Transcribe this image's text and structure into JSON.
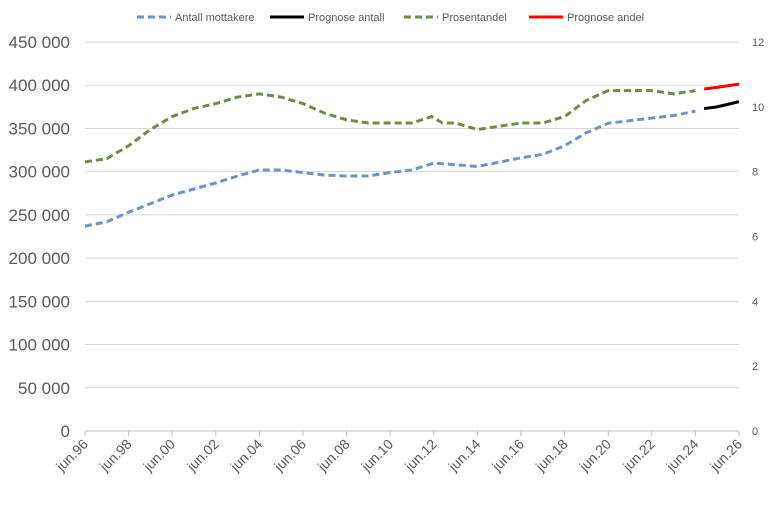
{
  "chart_data": {
    "type": "line",
    "title": "",
    "legend_position": "top",
    "grid": true,
    "x_ticks": [
      "jun.96",
      "jun.98",
      "jun.00",
      "jun.02",
      "jun.04",
      "jun.06",
      "jun.08",
      "jun.10",
      "jun.12",
      "jun.14",
      "jun.16",
      "jun.18",
      "jun.20",
      "jun.22",
      "jun.24",
      "jun.26"
    ],
    "xlim": [
      1996,
      2026
    ],
    "y_left": {
      "lim": [
        0,
        450000
      ],
      "ticks": [
        "0",
        "50 000",
        "100 000",
        "150 000",
        "200 000",
        "250 000",
        "300 000",
        "350 000",
        "400 000",
        "450 000"
      ]
    },
    "y_right": {
      "lim": [
        0,
        12
      ],
      "ticks": [
        "0",
        "2",
        "4",
        "6",
        "8",
        "10",
        "12"
      ]
    },
    "series": [
      {
        "name": "Antall mottakere",
        "axis": "left",
        "color": "#6f92cf",
        "dash": true,
        "x": [
          1996,
          1997,
          1998,
          1999,
          2000,
          2001,
          2002,
          2003,
          2004,
          2005,
          2006,
          2007,
          2008,
          2009,
          2010,
          2011,
          2012,
          2013,
          2014,
          2015,
          2016,
          2017,
          2018,
          2019,
          2020,
          2021,
          2022,
          2023,
          2024
        ],
        "values": [
          237000,
          242000,
          253000,
          263000,
          273000,
          280000,
          287000,
          295000,
          302000,
          302000,
          299000,
          296000,
          295000,
          295000,
          299000,
          302000,
          310000,
          308000,
          306000,
          311000,
          316000,
          320000,
          330000,
          345000,
          356000,
          359000,
          362000,
          365000,
          370000
        ]
      },
      {
        "name": "Prognose antall",
        "axis": "left",
        "color": "#000000",
        "dash": false,
        "x": [
          2024.4,
          2025,
          2025.5,
          2026
        ],
        "values": [
          373000,
          375000,
          378000,
          381000
        ]
      },
      {
        "name": "Prosentandel",
        "axis": "right",
        "color": "#6e8c46",
        "dash": true,
        "x": [
          1996,
          1997,
          1998,
          1999,
          2000,
          2001,
          2002,
          2003,
          2004,
          2005,
          2006,
          2007,
          2008,
          2009,
          2010,
          2011,
          2011.9,
          2012.4,
          2013,
          2014,
          2015,
          2016,
          2017,
          2018,
          2019,
          2020,
          2021,
          2022,
          2023,
          2024
        ],
        "values": [
          8.3,
          8.4,
          8.8,
          9.3,
          9.7,
          9.95,
          10.1,
          10.3,
          10.4,
          10.3,
          10.1,
          9.8,
          9.6,
          9.5,
          9.5,
          9.5,
          9.7,
          9.5,
          9.5,
          9.3,
          9.4,
          9.5,
          9.5,
          9.7,
          10.2,
          10.5,
          10.5,
          10.5,
          10.4,
          10.5
        ]
      },
      {
        "name": "Prognose andel",
        "axis": "right",
        "color": "#ff0000",
        "dash": false,
        "x": [
          2024.4,
          2025,
          2025.5,
          2026
        ],
        "values": [
          10.55,
          10.6,
          10.65,
          10.7
        ]
      }
    ]
  }
}
